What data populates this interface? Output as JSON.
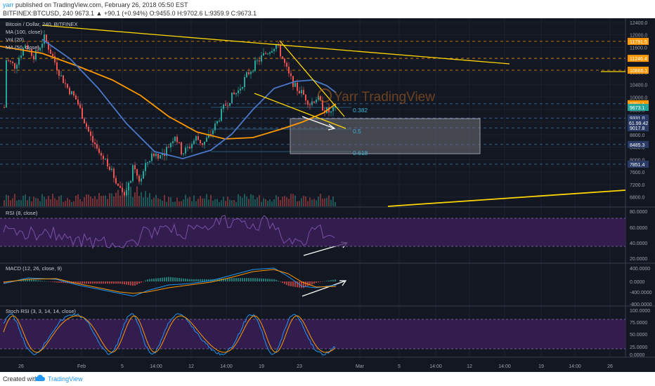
{
  "header": {
    "user": "yarr",
    "published_text": "published on TradingView.com, February 26, 2018 05:50 EST",
    "symbol_line": "BITFINEX:BTCUSD, 240  9673.1  ▲  +90.1 (+0.94%)  O:9455.0  H:9702.6  L:9359.9  C:9673.1"
  },
  "footer": {
    "created_with": "Created with",
    "brand": "TradingView"
  },
  "legend": {
    "title": "Bitcoin / Dollar, 240, BITFINEX",
    "ma100": "MA (100, close)",
    "vol": "Vol (20)",
    "ma50": "MA (50, close)"
  },
  "watermark": "Yarr TradingView",
  "fib_labels": [
    "0.382",
    "0.5",
    "0.618"
  ],
  "price_ticks": [
    "12400.0",
    "12000.0",
    "11600.0",
    "11200.0",
    "10800.0",
    "10400.0",
    "10000.0",
    "9600.0",
    "9200.0",
    "8800.0",
    "8400.0",
    "8000.0",
    "7600.0",
    "7200.0",
    "6800.0"
  ],
  "price_badges": [
    {
      "text": "11791.5",
      "color": "#ff9800"
    },
    {
      "text": "11246.4",
      "color": "#ff9800"
    },
    {
      "text": "10866.1",
      "color": "#ff9800"
    },
    {
      "text": "9791.1",
      "color": "#ff9800"
    },
    {
      "text": "9673.1",
      "color": "#26a69a"
    },
    {
      "text": "9331.0",
      "color": "#2a3a66"
    },
    {
      "text": "9017.8",
      "color": "#2a3a66"
    },
    {
      "text": "8485.3",
      "color": "#2a3a66"
    },
    {
      "text": "7851.4",
      "color": "#2a3a66"
    }
  ],
  "badge_volume": "61.99.42",
  "rsi": {
    "label": "RSI (8, close)",
    "ticks": [
      "80.0000",
      "60.0000",
      "40.0000",
      "20.0000"
    ]
  },
  "macd": {
    "label": "MACD (12, 26, close, 9)",
    "ticks": [
      "400.0000",
      "0.0000",
      "-400.0000",
      "-800.0000"
    ]
  },
  "stoch": {
    "label": "Stoch RSI (3, 3, 14, 14, close)",
    "ticks": [
      "100.0000",
      "75.0000",
      "50.0000",
      "25.0000",
      "0.0000"
    ]
  },
  "time_ticks": [
    "26",
    "Feb",
    "5",
    "14:00",
    "12",
    "14:00",
    "19",
    "23",
    "Mar",
    "5",
    "14:00",
    "12",
    "14:00",
    "19",
    "14:00",
    "26"
  ],
  "colors": {
    "background": "#131722",
    "grid": "#1f2433",
    "trendline": "#ffd700",
    "ma50": "#4a78c9",
    "ma100": "#ff9800",
    "fib": "#39b0d4",
    "fib_zone": "#6d6d77",
    "rsi_band": "#3b1f5a",
    "up": "#26a69a",
    "down": "#ef5350",
    "arrow": "#ffffff"
  }
}
